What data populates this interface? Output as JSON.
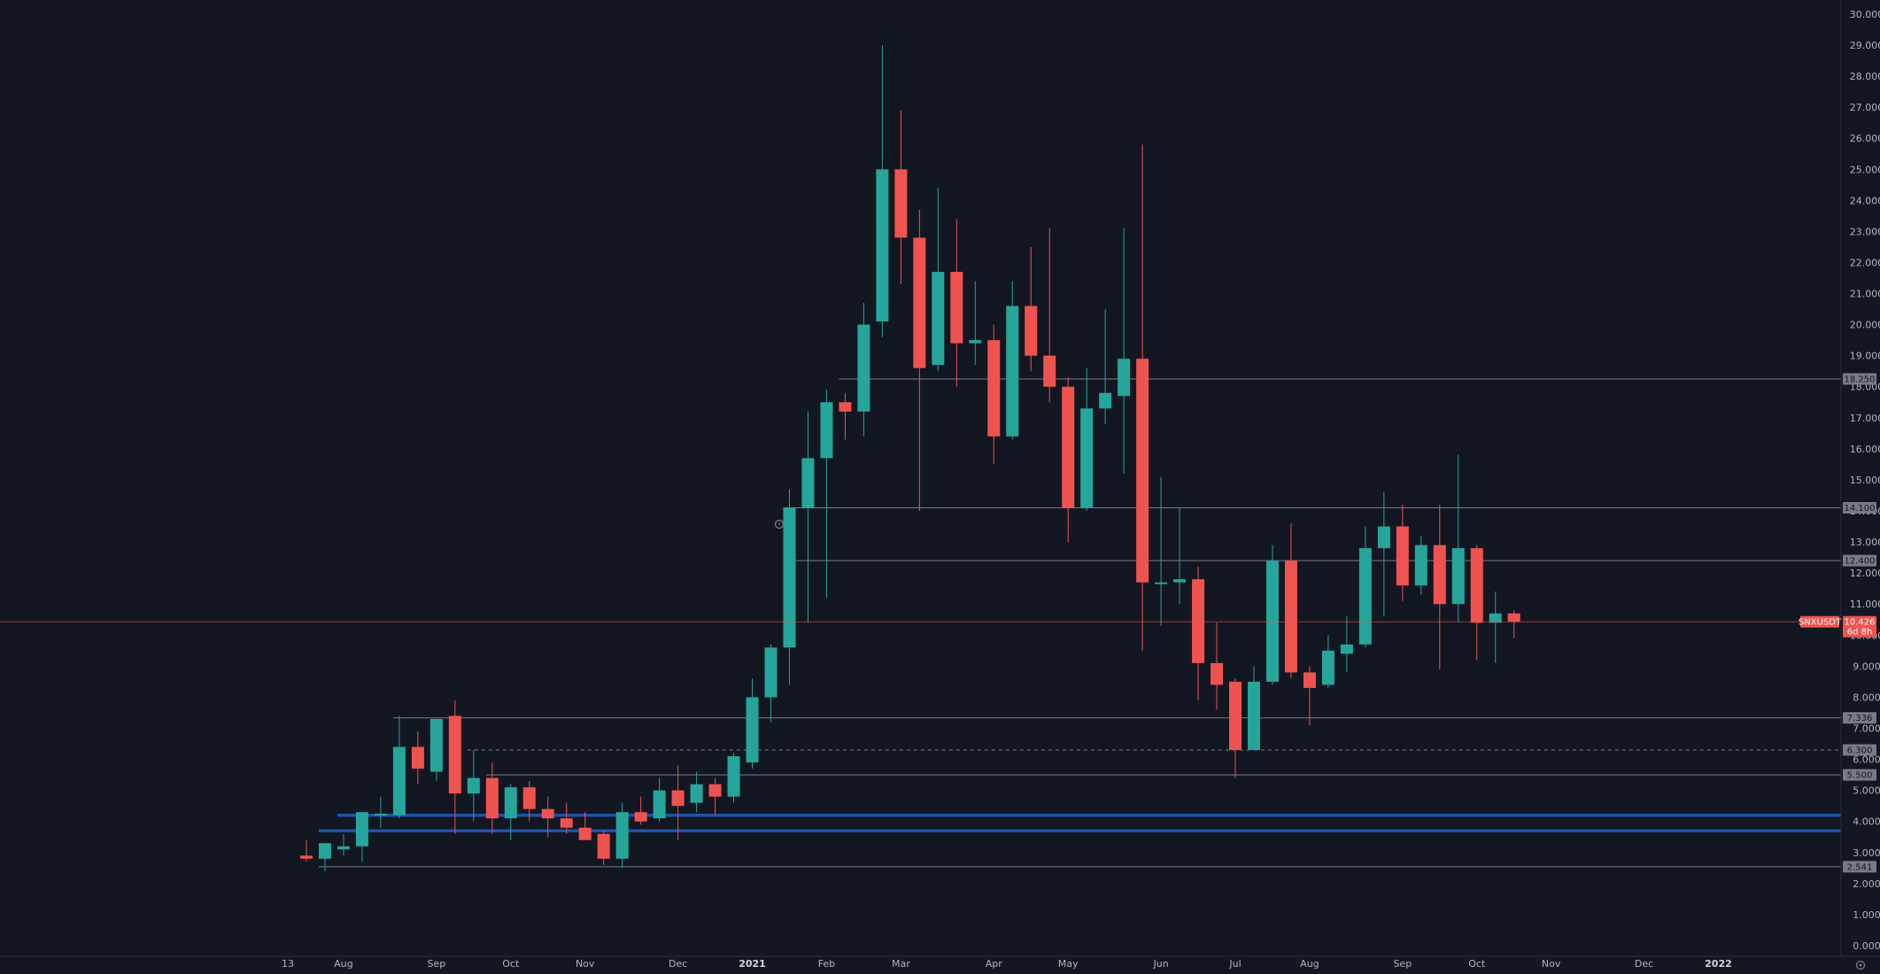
{
  "chart_data": {
    "type": "candlestick",
    "symbol": "SNXUSDT",
    "last_price": "10.426",
    "countdown": "6d 8h",
    "ylim": [
      0,
      30
    ],
    "y_ticks": [
      0,
      1,
      2,
      3,
      4,
      5,
      6,
      7,
      8,
      9,
      10,
      11,
      12,
      13,
      14,
      15,
      16,
      17,
      18,
      19,
      20,
      21,
      22,
      23,
      24,
      25,
      26,
      27,
      28,
      29,
      30
    ],
    "y_tick_labels": [
      "0.000",
      "1.000",
      "2.000",
      "3.000",
      "4.000",
      "5.000",
      "6.000",
      "7.000",
      "8.000",
      "9.000",
      "10.000",
      "11.000",
      "12.000",
      "13.000",
      "14.000",
      "15.000",
      "16.000",
      "17.000",
      "18.000",
      "19.000",
      "20.000",
      "21.000",
      "22.000",
      "23.000",
      "24.000",
      "25.000",
      "26.000",
      "27.000",
      "28.000",
      "29.000",
      "30.000"
    ],
    "x_ticks": [
      {
        "label": "13",
        "bold": false
      },
      {
        "label": "Aug",
        "bold": false
      },
      {
        "label": "Sep",
        "bold": false
      },
      {
        "label": "Oct",
        "bold": false
      },
      {
        "label": "Nov",
        "bold": false
      },
      {
        "label": "Dec",
        "bold": false
      },
      {
        "label": "2021",
        "bold": true
      },
      {
        "label": "Feb",
        "bold": false
      },
      {
        "label": "Mar",
        "bold": false
      },
      {
        "label": "Apr",
        "bold": false
      },
      {
        "label": "May",
        "bold": false
      },
      {
        "label": "Jun",
        "bold": false
      },
      {
        "label": "Jul",
        "bold": false
      },
      {
        "label": "Aug",
        "bold": false
      },
      {
        "label": "Sep",
        "bold": false
      },
      {
        "label": "Oct",
        "bold": false
      },
      {
        "label": "Nov",
        "bold": false
      },
      {
        "label": "Dec",
        "bold": false
      },
      {
        "label": "2022",
        "bold": true
      }
    ],
    "x_tick_positions": [
      -1,
      2,
      7,
      11,
      15,
      20,
      24,
      28,
      32,
      37,
      41,
      46,
      50,
      54,
      59,
      63,
      67,
      72,
      76
    ],
    "candles": [
      {
        "o": 2.9,
        "h": 3.4,
        "l": 2.7,
        "c": 2.8
      },
      {
        "o": 2.8,
        "h": 3.2,
        "l": 2.4,
        "c": 3.3
      },
      {
        "o": 3.1,
        "h": 3.6,
        "l": 2.9,
        "c": 3.2
      },
      {
        "o": 3.2,
        "h": 4.3,
        "l": 2.7,
        "c": 4.3
      },
      {
        "o": 4.2,
        "h": 4.8,
        "l": 3.8,
        "c": 4.25
      },
      {
        "o": 4.2,
        "h": 7.4,
        "l": 4.1,
        "c": 6.4
      },
      {
        "o": 6.4,
        "h": 6.9,
        "l": 5.2,
        "c": 5.7
      },
      {
        "o": 5.6,
        "h": 7.3,
        "l": 5.3,
        "c": 7.3
      },
      {
        "o": 7.4,
        "h": 7.9,
        "l": 3.6,
        "c": 4.9
      },
      {
        "o": 4.9,
        "h": 6.3,
        "l": 4.0,
        "c": 5.4
      },
      {
        "o": 5.4,
        "h": 5.9,
        "l": 3.6,
        "c": 4.1
      },
      {
        "o": 4.1,
        "h": 5.2,
        "l": 3.4,
        "c": 5.1
      },
      {
        "o": 5.1,
        "h": 5.3,
        "l": 4.0,
        "c": 4.4
      },
      {
        "o": 4.4,
        "h": 4.8,
        "l": 3.5,
        "c": 4.1
      },
      {
        "o": 4.1,
        "h": 4.6,
        "l": 3.6,
        "c": 3.8
      },
      {
        "o": 3.8,
        "h": 4.3,
        "l": 3.4,
        "c": 3.4
      },
      {
        "o": 3.6,
        "h": 3.7,
        "l": 2.6,
        "c": 2.8
      },
      {
        "o": 2.8,
        "h": 4.6,
        "l": 2.5,
        "c": 4.3
      },
      {
        "o": 4.3,
        "h": 4.8,
        "l": 3.9,
        "c": 4.0
      },
      {
        "o": 4.1,
        "h": 5.4,
        "l": 4.0,
        "c": 5.0
      },
      {
        "o": 5.0,
        "h": 5.8,
        "l": 3.4,
        "c": 4.5
      },
      {
        "o": 4.6,
        "h": 5.6,
        "l": 4.3,
        "c": 5.2
      },
      {
        "o": 5.2,
        "h": 5.4,
        "l": 4.2,
        "c": 4.8
      },
      {
        "o": 4.8,
        "h": 6.2,
        "l": 4.6,
        "c": 6.1
      },
      {
        "o": 5.9,
        "h": 8.6,
        "l": 5.7,
        "c": 8.0
      },
      {
        "o": 8.0,
        "h": 9.7,
        "l": 7.2,
        "c": 9.6
      },
      {
        "o": 9.6,
        "h": 14.7,
        "l": 8.4,
        "c": 14.1
      },
      {
        "o": 14.1,
        "h": 17.2,
        "l": 10.4,
        "c": 15.7
      },
      {
        "o": 15.7,
        "h": 17.9,
        "l": 11.2,
        "c": 17.5
      },
      {
        "o": 17.5,
        "h": 17.8,
        "l": 16.3,
        "c": 17.2
      },
      {
        "o": 17.2,
        "h": 20.7,
        "l": 16.4,
        "c": 20.0
      },
      {
        "o": 20.1,
        "h": 29.0,
        "l": 19.6,
        "c": 25.0
      },
      {
        "o": 25.0,
        "h": 26.9,
        "l": 21.3,
        "c": 22.8
      },
      {
        "o": 22.8,
        "h": 23.7,
        "l": 14.0,
        "c": 18.6
      },
      {
        "o": 18.7,
        "h": 24.4,
        "l": 18.5,
        "c": 21.7
      },
      {
        "o": 21.7,
        "h": 23.4,
        "l": 18.0,
        "c": 19.4
      },
      {
        "o": 19.4,
        "h": 21.4,
        "l": 18.7,
        "c": 19.5
      },
      {
        "o": 19.5,
        "h": 20.0,
        "l": 15.5,
        "c": 16.4
      },
      {
        "o": 16.4,
        "h": 21.4,
        "l": 16.3,
        "c": 20.6
      },
      {
        "o": 20.6,
        "h": 22.5,
        "l": 18.5,
        "c": 19.0
      },
      {
        "o": 19.0,
        "h": 23.1,
        "l": 17.5,
        "c": 18.0
      },
      {
        "o": 18.0,
        "h": 18.3,
        "l": 13.0,
        "c": 14.1
      },
      {
        "o": 14.1,
        "h": 18.6,
        "l": 14.0,
        "c": 17.3
      },
      {
        "o": 17.3,
        "h": 20.5,
        "l": 16.8,
        "c": 17.8
      },
      {
        "o": 17.7,
        "h": 23.1,
        "l": 15.2,
        "c": 18.9
      },
      {
        "o": 18.9,
        "h": 25.8,
        "l": 9.5,
        "c": 11.7
      },
      {
        "o": 11.7,
        "h": 15.1,
        "l": 10.3,
        "c": 11.7
      },
      {
        "o": 11.7,
        "h": 14.1,
        "l": 11.0,
        "c": 11.8
      },
      {
        "o": 11.8,
        "h": 12.2,
        "l": 7.9,
        "c": 9.1
      },
      {
        "o": 9.1,
        "h": 10.4,
        "l": 7.6,
        "c": 8.4
      },
      {
        "o": 8.5,
        "h": 8.6,
        "l": 5.4,
        "c": 6.3
      },
      {
        "o": 6.3,
        "h": 9.0,
        "l": 6.3,
        "c": 8.5
      },
      {
        "o": 8.5,
        "h": 12.9,
        "l": 8.4,
        "c": 12.4
      },
      {
        "o": 12.4,
        "h": 13.6,
        "l": 8.6,
        "c": 8.8
      },
      {
        "o": 8.8,
        "h": 9.0,
        "l": 7.1,
        "c": 8.3
      },
      {
        "o": 8.4,
        "h": 10.0,
        "l": 8.3,
        "c": 9.5
      },
      {
        "o": 9.4,
        "h": 10.6,
        "l": 8.8,
        "c": 9.7
      },
      {
        "o": 9.7,
        "h": 13.5,
        "l": 9.6,
        "c": 12.8
      },
      {
        "o": 12.8,
        "h": 14.6,
        "l": 10.6,
        "c": 13.5
      },
      {
        "o": 13.5,
        "h": 14.2,
        "l": 11.1,
        "c": 11.6
      },
      {
        "o": 11.6,
        "h": 13.2,
        "l": 11.3,
        "c": 12.9
      },
      {
        "o": 12.9,
        "h": 14.2,
        "l": 8.9,
        "c": 11.0
      },
      {
        "o": 11.0,
        "h": 15.8,
        "l": 10.4,
        "c": 12.8
      },
      {
        "o": 12.8,
        "h": 12.9,
        "l": 9.2,
        "c": 10.4
      },
      {
        "o": 10.4,
        "h": 11.4,
        "l": 9.1,
        "c": 10.7
      },
      {
        "o": 10.7,
        "h": 10.8,
        "l": 9.9,
        "c": 10.43
      }
    ],
    "horizontal_levels": [
      {
        "value": 18.25,
        "label": "18.250",
        "style": "solid-gray",
        "from_index": 29
      },
      {
        "value": 14.1,
        "label": "14.100",
        "style": "solid-gray",
        "from_index": 26
      },
      {
        "value": 12.4,
        "label": "12.400",
        "style": "solid-gray",
        "from_index": 26
      },
      {
        "value": 7.336,
        "label": "7.336",
        "style": "solid-gray",
        "from_index": 5
      },
      {
        "value": 6.3,
        "label": "6.300",
        "style": "dashed-gray",
        "from_index": 9
      },
      {
        "value": 5.5,
        "label": "5.500",
        "style": "solid-gray",
        "from_index": 10
      },
      {
        "value": 2.541,
        "label": "2.541",
        "style": "solid-gray",
        "from_index": 1
      }
    ],
    "zones": [
      {
        "value": 4.2,
        "from_index": 2,
        "color": "#2962ff"
      },
      {
        "value": 3.7,
        "from_index": 1,
        "color": "#2962ff"
      }
    ],
    "colors": {
      "up": "#26a69a",
      "down": "#ef5350",
      "background": "#131722",
      "axis_text": "#b2b5be",
      "level_line": "#787b86",
      "price_line": "#ef5350",
      "zone_line": "#1e53a6"
    }
  }
}
